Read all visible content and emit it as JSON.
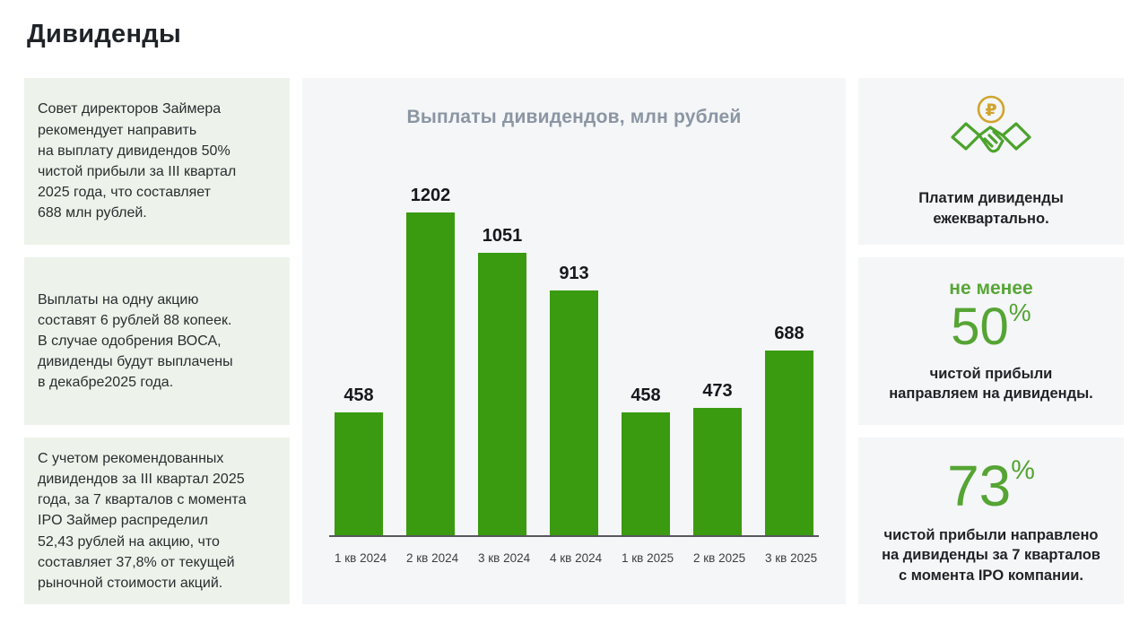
{
  "page": {
    "title": "Дивиденды"
  },
  "left_boxes": [
    {
      "text": "Совет директоров Займера\nрекомендует направить\nна выплату дивидендов 50%\nчистой прибыли за III квартал\n2025 года, что составляет\n688 млн рублей."
    },
    {
      "text": "Выплаты на одну акцию\nсоставят 6 рублей 88 копеек.\nВ случае одобрения ВОСА,\nдивиденды будут выплачены\nв декабре2025 года."
    },
    {
      "text": "С учетом рекомендованных\nдивидендов за III квартал 2025\nгода, за 7 кварталов с момента\nIPO Займер распределил\n52,43 рублей на акцию, что\nсоставляет 37,8% от текущей\nрыночной стоимости акций."
    }
  ],
  "chart_data": {
    "type": "bar",
    "title": "Выплаты дивидендов, млн рублей",
    "categories": [
      "1 кв 2024",
      "2 кв 2024",
      "3 кв 2024",
      "4 кв 2024",
      "1 кв 2025",
      "2 кв 2025",
      "3 кв 2025"
    ],
    "values": [
      458,
      1202,
      1051,
      913,
      458,
      473,
      688
    ],
    "xlabel": "",
    "ylabel": "млн рублей",
    "ylim": [
      0,
      1300
    ],
    "grid": false,
    "legend": false,
    "value_labels": true,
    "bar_color": "#3a9b10"
  },
  "right_boxes": {
    "quarterly": {
      "icon": "ruble-handshake-icon",
      "text": "Платим дивиденды\nежеквартально."
    },
    "payout_ratio": {
      "lead": "не менее",
      "value": "50",
      "percent": "%",
      "caption": "чистой прибыли\nнаправляем на дивиденды."
    },
    "since_ipo": {
      "value": "73",
      "percent": "%",
      "caption": "чистой прибыли направлено\nна дивиденды за 7 кварталов\nс момента IPO компании."
    }
  },
  "colors": {
    "bar_green": "#3a9b10",
    "accent_green": "#55a434",
    "coin_gold": "#d0a42e",
    "handshake_green": "#4ca32c",
    "note_box_bg": "#edf3ea",
    "panel_bg": "#f4f6f7"
  }
}
